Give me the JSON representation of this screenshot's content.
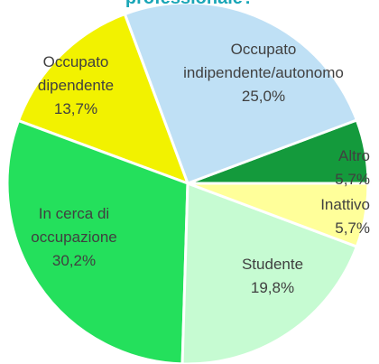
{
  "chart_data": {
    "type": "pie",
    "title": "professionale?",
    "categories": [
      "Altro",
      "Occupato\nindipendente/autonomo",
      "Occupato\ndipendente",
      "In cerca di\noccupazione",
      "Studente",
      "Inattivo"
    ],
    "values": [
      5.7,
      25.0,
      13.7,
      30.2,
      19.8,
      5.7
    ],
    "value_labels": [
      "5,7%",
      "25,0%",
      "13,7%",
      "30,2%",
      "19,8%",
      "5,7%"
    ],
    "colors": [
      "#149a3c",
      "#bfe0f5",
      "#f2f200",
      "#24e05c",
      "#c6fbd2",
      "#ffff9a"
    ]
  }
}
